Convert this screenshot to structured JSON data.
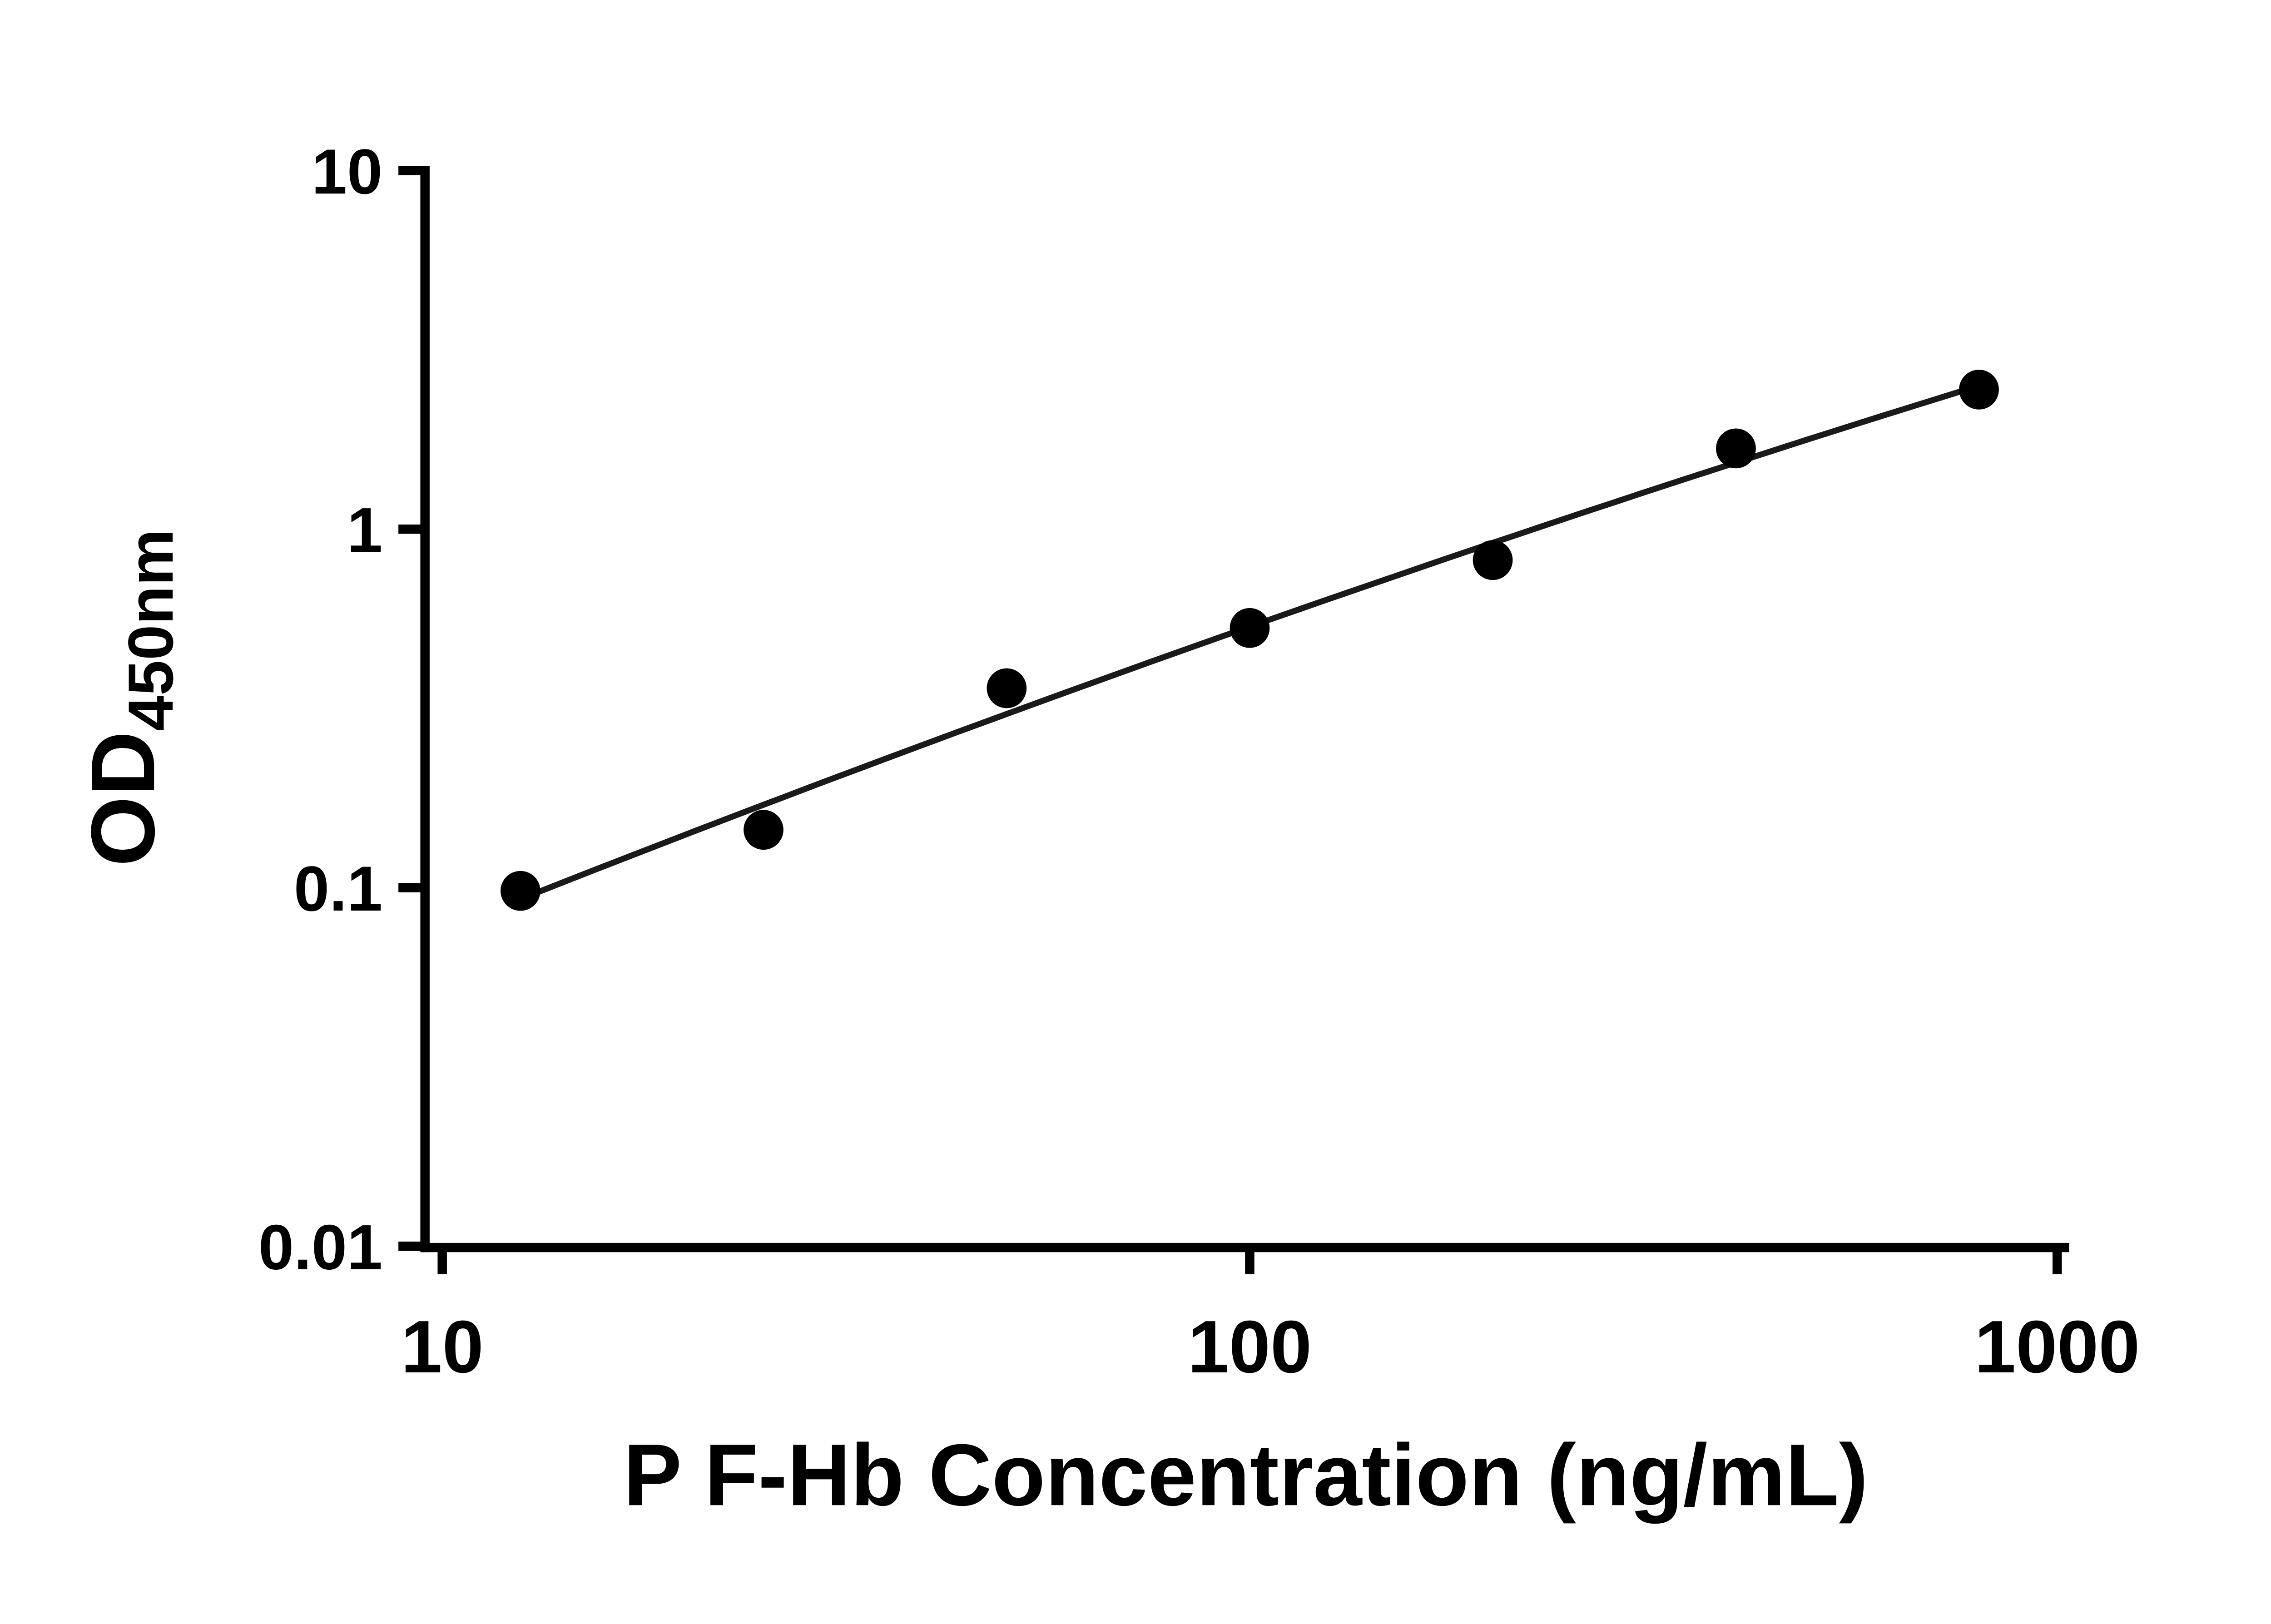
{
  "chart_data": {
    "type": "scatter",
    "title": "",
    "xlabel": "P F-Hb Concentration (ng/mL)",
    "ylabel_main": "OD",
    "ylabel_sub": "450nm",
    "x_scale": "log",
    "y_scale": "log",
    "xlim": [
      10,
      1000
    ],
    "ylim": [
      0.01,
      10
    ],
    "x_ticks": [
      10,
      100,
      1000
    ],
    "x_tick_labels": [
      "10",
      "100",
      "1000"
    ],
    "y_ticks": [
      10,
      1,
      0.1,
      0.01
    ],
    "y_tick_labels": [
      "10",
      "1",
      "0.1",
      "0.01"
    ],
    "grid": false,
    "legend": "none",
    "points": {
      "x": [
        12.5,
        25,
        50,
        100,
        200,
        400,
        800
      ],
      "y": [
        0.098,
        0.145,
        0.36,
        0.53,
        0.82,
        1.68,
        2.45
      ]
    },
    "fit_curve": {
      "type": "quadratic_loglog",
      "description": "smooth standard-curve fit through points, log10(y) = a + b*(log10(x)-c) + d*(log10(x)-c)^2",
      "a": -0.272,
      "b": 0.7926,
      "d": -0.0537,
      "c": 2.0,
      "t_start": 1.097,
      "t_end": 2.903
    },
    "marker_color": "#000000",
    "line_color": "#1a1a1a",
    "axis_color": "#000000",
    "background": "#ffffff"
  }
}
